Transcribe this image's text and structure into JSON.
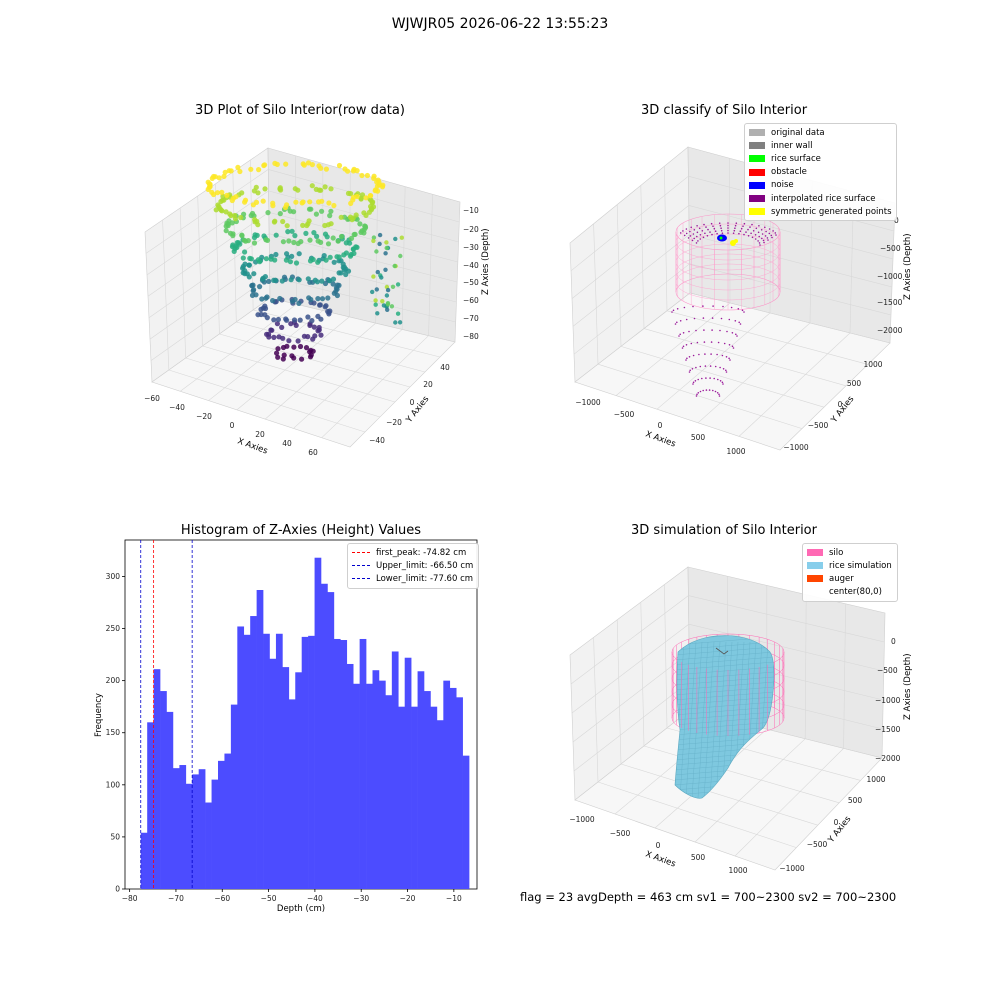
{
  "suptitle": "WJWJR05 2026-06-22 13:55:23",
  "status": "flag = 23  avgDepth = 463 cm  sv1 = 700~2300  sv2 = 700~2300",
  "plots": {
    "raw3d": {
      "title": "3D Plot of Silo Interior(row data)",
      "xlabel": "X Axies",
      "ylabel": "Y Axies",
      "zlabel": "Z Axies (Depth)",
      "xticks": [
        "−60",
        "−40",
        "−20",
        "0",
        "20",
        "40",
        "60"
      ],
      "yticks": [
        "−40",
        "−20",
        "0",
        "20",
        "40"
      ],
      "zticks": [
        "−10",
        "−20",
        "−30",
        "−40",
        "−50",
        "−60",
        "−70",
        "−80"
      ]
    },
    "classify3d": {
      "title": "3D classify of Silo Interior",
      "xlabel": "X Axies",
      "ylabel": "Y Axies",
      "zlabel": "Z Axies (Depth)",
      "xticks": [
        "−1000",
        "−500",
        "0",
        "500",
        "1000"
      ],
      "yticks": [
        "−1000",
        "−500",
        "0",
        "500",
        "1000"
      ],
      "zticks": [
        "0",
        "−500",
        "−1000",
        "−1500",
        "−2000"
      ],
      "legend": [
        {
          "label": "original data",
          "color": "#b0b0b0"
        },
        {
          "label": "inner wall",
          "color": "#808080"
        },
        {
          "label": "rice surface",
          "color": "#00ff00"
        },
        {
          "label": "obstacle",
          "color": "#ff0000"
        },
        {
          "label": "noise",
          "color": "#0000ff"
        },
        {
          "label": "interpolated rice surface",
          "color": "#800080"
        },
        {
          "label": "symmetric generated points",
          "color": "#ffff00"
        }
      ]
    },
    "simulation3d": {
      "title": "3D simulation of Silo Interior",
      "xlabel": "X Axies",
      "ylabel": "Y Axies",
      "zlabel": "Z Axies (Depth)",
      "xticks": [
        "−1000",
        "−500",
        "0",
        "500",
        "1000"
      ],
      "yticks": [
        "−1000",
        "−500",
        "0",
        "500",
        "1000"
      ],
      "zticks": [
        "0",
        "−500",
        "−1000",
        "−1500",
        "−2000"
      ],
      "legend": [
        {
          "label": "silo",
          "color": "#ff69b4"
        },
        {
          "label": "rice simulation",
          "color": "#87ceeb"
        },
        {
          "label": "auger",
          "color": "#ff4500"
        },
        {
          "label": "center(80,0)",
          "color": ""
        }
      ]
    }
  },
  "chart_data": {
    "type": "bar",
    "title": "Histogram of Z-Axies (Height) Values",
    "xlabel": "Depth (cm)",
    "ylabel": "Frequency",
    "bar_color": "#4c4cff",
    "xlim": [
      -81,
      -5
    ],
    "ylim": [
      0,
      335
    ],
    "xticks": [
      -80,
      -70,
      -60,
      -50,
      -40,
      -30,
      -20,
      -10
    ],
    "yticks": [
      0,
      50,
      100,
      150,
      200,
      250,
      300
    ],
    "bin_start": -77.6,
    "bin_width": 1.39,
    "values": [
      54,
      160,
      211,
      190,
      170,
      116,
      119,
      101,
      110,
      115,
      83,
      105,
      123,
      130,
      177,
      252,
      244,
      262,
      287,
      245,
      221,
      245,
      213,
      182,
      208,
      242,
      243,
      318,
      293,
      285,
      240,
      239,
      216,
      197,
      240,
      197,
      210,
      200,
      186,
      228,
      175,
      222,
      175,
      209,
      190,
      175,
      162,
      200,
      193,
      184,
      128
    ],
    "vlines": [
      {
        "label": "first_peak: -74.82 cm",
        "x": -74.82,
        "color": "#ff0000"
      },
      {
        "label": "Upper_limit: -66.50 cm",
        "x": -66.5,
        "color": "#0000cc"
      },
      {
        "label": "Lower_limit: -77.60 cm",
        "x": -77.6,
        "color": "#0000cc"
      }
    ]
  }
}
